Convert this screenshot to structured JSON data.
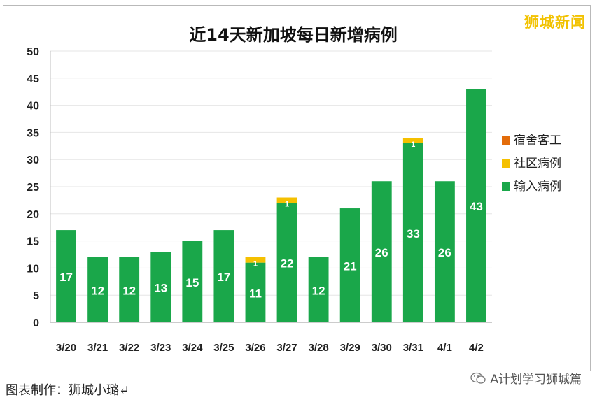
{
  "watermark_brand": "狮城新闻",
  "footer": {
    "credit": "图表制作：狮城小璐↵",
    "wechat_account": "A计划学习狮城篇",
    "icon": "wechat-icon"
  },
  "chart_data": {
    "type": "bar",
    "stacked": true,
    "title": "近14天新加坡每日新增病例",
    "categories": [
      "3/20",
      "3/21",
      "3/22",
      "3/23",
      "3/24",
      "3/25",
      "3/26",
      "3/27",
      "3/28",
      "3/29",
      "3/30",
      "3/31",
      "4/1",
      "4/2"
    ],
    "series": [
      {
        "name": "输入病例",
        "color": "#1aa74a",
        "values": [
          17,
          12,
          12,
          13,
          15,
          17,
          11,
          22,
          12,
          21,
          26,
          33,
          26,
          43
        ]
      },
      {
        "name": "社区病例",
        "color": "#f5c000",
        "values": [
          0,
          0,
          0,
          0,
          0,
          0,
          1,
          1,
          0,
          0,
          0,
          1,
          0,
          0
        ]
      },
      {
        "name": "宿舍客工",
        "color": "#e36c0a",
        "values": [
          0,
          0,
          0,
          0,
          0,
          0,
          0,
          0,
          0,
          0,
          0,
          0,
          0,
          0
        ]
      }
    ],
    "data_labels": [
      "17",
      "12",
      "12",
      "13",
      "15",
      "17",
      "11",
      "22",
      "12",
      "21",
      "26",
      "33",
      "26",
      "43"
    ],
    "segment_labels": [
      "",
      "",
      "",
      "",
      "",
      "",
      "1",
      "1",
      "",
      "",
      "",
      "1",
      "",
      ""
    ],
    "ylim": [
      0,
      50
    ],
    "yticks": [
      0,
      5,
      10,
      15,
      20,
      25,
      30,
      35,
      40,
      45,
      50
    ],
    "grid": true,
    "legend_position": "right",
    "legend_order": [
      "宿舍客工",
      "社区病例",
      "输入病例"
    ]
  }
}
